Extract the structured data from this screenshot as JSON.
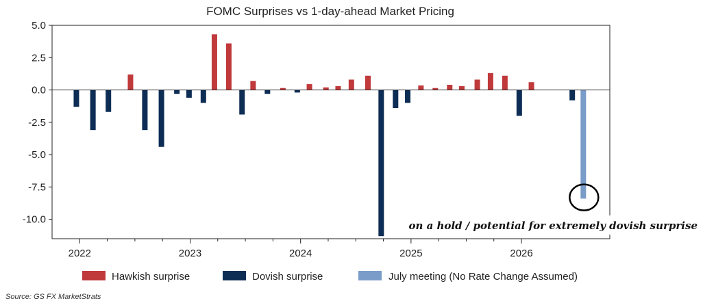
{
  "chart_data": {
    "type": "bar",
    "title": "FOMC Surprises vs 1-day-ahead Market Pricing",
    "xlabel": "",
    "ylabel": "",
    "x_ticks": [
      "2022",
      "2023",
      "2024",
      "2025",
      "2026"
    ],
    "x_range": [
      2021.75,
      2026.8
    ],
    "ylim": [
      -11.5,
      5.0
    ],
    "y_ticks": [
      "5.0",
      "2.5",
      "0.0",
      "-2.5",
      "-5.0",
      "-7.5",
      "-10.0"
    ],
    "grid": false,
    "legend_position": "bottom",
    "series": [
      {
        "name": "Hawkish surprise",
        "color": "#c0393b",
        "points": [
          {
            "x": 2022.46,
            "y": 1.2
          },
          {
            "x": 2023.22,
            "y": 4.3
          },
          {
            "x": 2023.35,
            "y": 3.6
          },
          {
            "x": 2023.57,
            "y": 0.7
          },
          {
            "x": 2023.84,
            "y": 0.15
          },
          {
            "x": 2024.08,
            "y": 0.45
          },
          {
            "x": 2024.23,
            "y": 0.2
          },
          {
            "x": 2024.34,
            "y": 0.3
          },
          {
            "x": 2024.46,
            "y": 0.8
          },
          {
            "x": 2024.61,
            "y": 1.1
          },
          {
            "x": 2025.09,
            "y": 0.35
          },
          {
            "x": 2025.22,
            "y": 0.15
          },
          {
            "x": 2025.35,
            "y": 0.4
          },
          {
            "x": 2025.46,
            "y": 0.3
          },
          {
            "x": 2025.6,
            "y": 0.8
          },
          {
            "x": 2025.72,
            "y": 1.3
          },
          {
            "x": 2025.85,
            "y": 1.1
          },
          {
            "x": 2026.09,
            "y": 0.6
          }
        ]
      },
      {
        "name": "Dovish surprise",
        "color": "#0d2d55",
        "points": [
          {
            "x": 2021.97,
            "y": -1.3
          },
          {
            "x": 2022.12,
            "y": -3.1
          },
          {
            "x": 2022.26,
            "y": -1.7
          },
          {
            "x": 2022.59,
            "y": -3.1
          },
          {
            "x": 2022.74,
            "y": -4.4
          },
          {
            "x": 2022.88,
            "y": -0.3
          },
          {
            "x": 2022.99,
            "y": -0.6
          },
          {
            "x": 2023.12,
            "y": -1.0
          },
          {
            "x": 2023.47,
            "y": -1.9
          },
          {
            "x": 2023.7,
            "y": -0.3
          },
          {
            "x": 2023.97,
            "y": -0.2
          },
          {
            "x": 2024.73,
            "y": -11.3
          },
          {
            "x": 2024.86,
            "y": -1.4
          },
          {
            "x": 2024.97,
            "y": -1.0
          },
          {
            "x": 2025.98,
            "y": -2.0
          },
          {
            "x": 2026.46,
            "y": -0.8
          }
        ]
      },
      {
        "name": "July meeting (No Rate Change Assumed)",
        "color": "#7a9cc9",
        "points": [
          {
            "x": 2026.56,
            "y": -8.4
          }
        ]
      }
    ],
    "annotation": {
      "text": "on a hold / potential for extremely dovish surprise",
      "x": 2026.56,
      "y": -8.2
    },
    "source": "Source: GS FX MarketStrats"
  }
}
